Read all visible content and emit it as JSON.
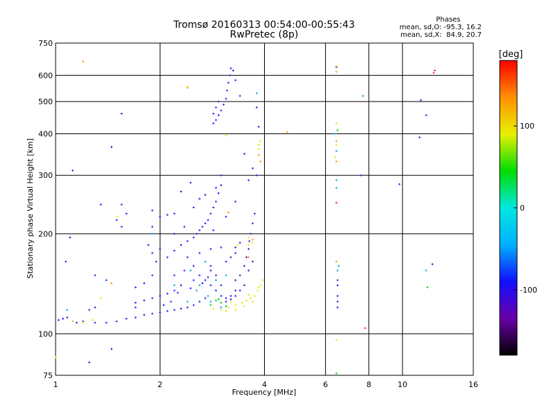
{
  "chart_data": {
    "type": "scatter",
    "title": "Tromsø 20160313 00:54:00-00:55:43",
    "subtitle": "RwPretec (8p)",
    "xlabel": "Frequency [MHz]",
    "ylabel": "Stationary phase Virtual Height [km]",
    "xscale": "log",
    "yscale": "log",
    "xlim": [
      1,
      16
    ],
    "ylim": [
      75,
      750
    ],
    "xticks": [
      1,
      2,
      4,
      6,
      8,
      10,
      16
    ],
    "yticks": [
      75,
      100,
      200,
      300,
      400,
      500,
      600,
      750
    ],
    "grid": true,
    "stats": {
      "heading": "Phases",
      "line_o": "mean, sd,O: -95.3, 16.2",
      "line_x": "mean, sd,X:  84.9, 20.7"
    },
    "colorbar": {
      "label": "[deg]",
      "range": [
        -180,
        180
      ],
      "ticks": [
        100,
        0,
        -100
      ],
      "colors": [
        "#000000",
        "#6a00a8",
        "#1010ff",
        "#00b0ff",
        "#00e8e0",
        "#00dd00",
        "#e8f000",
        "#ff9000",
        "#ff0000"
      ]
    },
    "series": [
      {
        "color": "#1a1aff",
        "points": [
          [
            1.02,
            110
          ],
          [
            1.05,
            111
          ],
          [
            1.08,
            112
          ],
          [
            1.12,
            109
          ],
          [
            1.15,
            108
          ],
          [
            1.2,
            109
          ],
          [
            1.3,
            108
          ],
          [
            1.4,
            108
          ],
          [
            1.5,
            109
          ],
          [
            1.6,
            111
          ],
          [
            1.7,
            112
          ],
          [
            1.8,
            114
          ],
          [
            1.9,
            115
          ],
          [
            2.0,
            116
          ],
          [
            2.1,
            117
          ],
          [
            2.2,
            118
          ],
          [
            2.3,
            119
          ],
          [
            2.4,
            120
          ],
          [
            2.5,
            122
          ],
          [
            2.6,
            125
          ],
          [
            2.7,
            128
          ],
          [
            1.7,
            138
          ],
          [
            1.8,
            142
          ],
          [
            1.9,
            150
          ],
          [
            1.95,
            165
          ],
          [
            2.1,
            170
          ],
          [
            2.2,
            178
          ],
          [
            2.3,
            185
          ],
          [
            2.4,
            190
          ],
          [
            2.5,
            195
          ],
          [
            2.55,
            200
          ],
          [
            2.6,
            205
          ],
          [
            2.65,
            210
          ],
          [
            2.7,
            215
          ],
          [
            2.75,
            220
          ],
          [
            2.8,
            230
          ],
          [
            2.85,
            240
          ],
          [
            2.9,
            250
          ],
          [
            2.95,
            265
          ],
          [
            3.0,
            280
          ],
          [
            3.0,
            300
          ],
          [
            2.5,
            160
          ],
          [
            2.6,
            150
          ],
          [
            2.7,
            145
          ],
          [
            2.8,
            140
          ],
          [
            2.9,
            135
          ],
          [
            3.0,
            130
          ],
          [
            3.1,
            128
          ],
          [
            3.2,
            127
          ],
          [
            3.3,
            130
          ],
          [
            3.4,
            135
          ],
          [
            2.3,
            140
          ],
          [
            2.2,
            135
          ],
          [
            2.1,
            132
          ],
          [
            2.0,
            130
          ],
          [
            1.9,
            128
          ],
          [
            1.8,
            126
          ],
          [
            1.7,
            124
          ],
          [
            2.4,
            170
          ],
          [
            2.6,
            175
          ],
          [
            2.8,
            180
          ],
          [
            3.0,
            182
          ],
          [
            2.2,
            150
          ],
          [
            2.35,
            155
          ],
          [
            2.5,
            145
          ],
          [
            2.8,
            160
          ],
          [
            3.1,
            165
          ],
          [
            3.3,
            175
          ],
          [
            2.0,
            225
          ],
          [
            2.1,
            228
          ],
          [
            2.2,
            230
          ],
          [
            1.9,
            235
          ],
          [
            2.5,
            240
          ],
          [
            2.6,
            255
          ],
          [
            2.7,
            262
          ],
          [
            2.9,
            275
          ],
          [
            1.85,
            185
          ],
          [
            1.9,
            175
          ],
          [
            2.85,
            430
          ],
          [
            2.9,
            440
          ],
          [
            2.95,
            455
          ],
          [
            3.0,
            470
          ],
          [
            3.05,
            490
          ],
          [
            3.1,
            510
          ],
          [
            3.12,
            540
          ],
          [
            3.15,
            570
          ],
          [
            3.18,
            600
          ],
          [
            3.2,
            630
          ],
          [
            3.25,
            620
          ],
          [
            3.3,
            580
          ],
          [
            3.4,
            520
          ],
          [
            2.9,
            480
          ],
          [
            2.95,
            500
          ],
          [
            2.85,
            460
          ],
          [
            1.55,
            245
          ],
          [
            1.6,
            230
          ],
          [
            1.5,
            220
          ],
          [
            1.55,
            210
          ],
          [
            1.3,
            150
          ],
          [
            1.4,
            145
          ],
          [
            1.7,
            120
          ],
          [
            2.05,
            122
          ],
          [
            2.15,
            125
          ],
          [
            2.25,
            133
          ],
          [
            2.45,
            137
          ],
          [
            2.65,
            142
          ],
          [
            2.75,
            148
          ],
          [
            3.5,
            348
          ],
          [
            3.6,
            290
          ],
          [
            3.7,
            315
          ],
          [
            3.3,
            250
          ],
          [
            3.1,
            225
          ],
          [
            2.85,
            205
          ],
          [
            1.07,
            165
          ],
          [
            1.1,
            195
          ],
          [
            1.12,
            310
          ],
          [
            1.45,
            365
          ],
          [
            1.55,
            460
          ],
          [
            1.35,
            245
          ],
          [
            1.45,
            90
          ],
          [
            1.25,
            82
          ],
          [
            7.6,
            300
          ],
          [
            9.8,
            282
          ],
          [
            11.2,
            390
          ],
          [
            11.7,
            455
          ],
          [
            3.8,
            480
          ],
          [
            3.85,
            420
          ],
          [
            3.8,
            300
          ],
          [
            3.75,
            230
          ]
        ]
      },
      {
        "color": "#3b10c8",
        "points": [
          [
            3.3,
            145
          ],
          [
            3.4,
            150
          ],
          [
            3.5,
            160
          ],
          [
            3.55,
            170
          ],
          [
            3.6,
            180
          ],
          [
            3.62,
            190
          ],
          [
            3.65,
            200
          ],
          [
            3.5,
            140
          ],
          [
            3.3,
            135
          ],
          [
            3.2,
            130
          ],
          [
            3.1,
            125
          ],
          [
            3.0,
            140
          ],
          [
            2.9,
            150
          ],
          [
            2.8,
            155
          ],
          [
            3.2,
            170
          ],
          [
            3.3,
            182
          ],
          [
            2.2,
            200
          ],
          [
            2.35,
            210
          ],
          [
            1.9,
            210
          ],
          [
            2.0,
            180
          ],
          [
            1.3,
            120
          ],
          [
            1.25,
            118
          ],
          [
            3.4,
            188
          ],
          [
            3.6,
            155
          ],
          [
            3.7,
            165
          ],
          [
            3.7,
            215
          ],
          [
            2.3,
            268
          ],
          [
            2.45,
            285
          ],
          [
            6.45,
            635
          ],
          [
            11.3,
            505
          ],
          [
            12.2,
            162
          ],
          [
            6.5,
            130
          ],
          [
            6.5,
            140
          ],
          [
            6.5,
            145
          ],
          [
            6.5,
            125
          ],
          [
            6.5,
            120
          ]
        ]
      },
      {
        "color": "#00a8e8",
        "points": [
          [
            2.6,
            140
          ],
          [
            2.75,
            130
          ],
          [
            2.9,
            145
          ],
          [
            3.0,
            120
          ],
          [
            2.45,
            155
          ],
          [
            2.2,
            140
          ],
          [
            2.7,
            165
          ],
          [
            3.1,
            150
          ],
          [
            7.7,
            520
          ],
          [
            6.45,
            355
          ],
          [
            6.4,
            400
          ],
          [
            6.45,
            290
          ],
          [
            6.45,
            275
          ],
          [
            3.8,
            530
          ],
          [
            11.7,
            155
          ],
          [
            1.08,
            118
          ],
          [
            1.9,
            200
          ],
          [
            2.4,
            125
          ],
          [
            2.55,
            135
          ],
          [
            2.8,
            125
          ],
          [
            6.5,
            155
          ],
          [
            6.55,
            160
          ]
        ]
      },
      {
        "color": "#00cc00",
        "points": [
          [
            2.8,
            122
          ],
          [
            2.9,
            126
          ],
          [
            3.0,
            124
          ],
          [
            11.8,
            138
          ],
          [
            6.45,
            76
          ],
          [
            6.5,
            410
          ],
          [
            2.95,
            127
          ],
          [
            3.1,
            121
          ]
        ]
      },
      {
        "color": "#e6e600",
        "points": [
          [
            3.15,
            120
          ],
          [
            3.3,
            122
          ],
          [
            3.45,
            124
          ],
          [
            3.55,
            126
          ],
          [
            3.65,
            128
          ],
          [
            3.75,
            130
          ],
          [
            3.82,
            135
          ],
          [
            3.9,
            140
          ],
          [
            3.95,
            145
          ],
          [
            3.7,
            125
          ],
          [
            3.5,
            121
          ],
          [
            3.3,
            118
          ],
          [
            3.1,
            117
          ],
          [
            3.0,
            118
          ],
          [
            2.85,
            119
          ],
          [
            3.6,
            131
          ],
          [
            3.85,
            138
          ],
          [
            3.2,
            125
          ],
          [
            1.2,
            108
          ],
          [
            1.12,
            109
          ],
          [
            1.28,
            110
          ],
          [
            1.5,
            225
          ],
          [
            3.1,
            395
          ],
          [
            3.85,
            370
          ],
          [
            3.9,
            380
          ],
          [
            3.85,
            360
          ],
          [
            3.6,
            195
          ],
          [
            3.7,
            188
          ],
          [
            6.45,
            640
          ],
          [
            6.45,
            430
          ],
          [
            6.45,
            370
          ],
          [
            6.4,
            340
          ],
          [
            2.4,
            555
          ],
          [
            1.0,
            85
          ],
          [
            6.45,
            96
          ],
          [
            3.35,
            185
          ],
          [
            3.6,
            185
          ],
          [
            1.35,
            128
          ]
        ]
      },
      {
        "color": "#ff9900",
        "points": [
          [
            3.85,
            345
          ],
          [
            3.9,
            330
          ],
          [
            4.65,
            405
          ],
          [
            6.45,
            330
          ],
          [
            6.45,
            380
          ],
          [
            1.2,
            660
          ],
          [
            2.4,
            550
          ],
          [
            1.45,
            142
          ],
          [
            6.45,
            165
          ],
          [
            3.7,
            192
          ],
          [
            3.15,
            232
          ],
          [
            3.6,
            170
          ],
          [
            6.45,
            615
          ]
        ]
      },
      {
        "color": "#ff2020",
        "points": [
          [
            12.4,
            620
          ],
          [
            7.8,
            104
          ],
          [
            6.45,
            248
          ],
          [
            12.3,
            610
          ]
        ]
      }
    ]
  }
}
